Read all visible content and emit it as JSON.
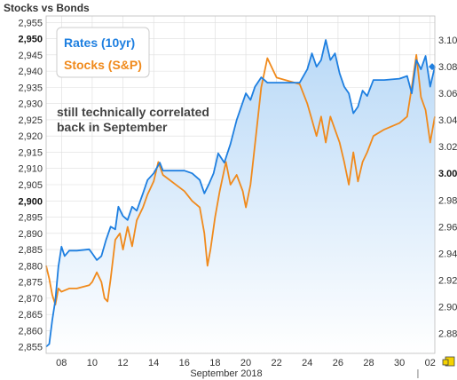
{
  "chart_data": {
    "type": "line",
    "title": "Stocks vs Bonds",
    "xlabel": "September 2018",
    "x_ticks": [
      "08",
      "10",
      "12",
      "14",
      "16",
      "18",
      "20",
      "22",
      "24",
      "26",
      "28",
      "30",
      "02"
    ],
    "x_range": [
      7,
      32.3
    ],
    "y_left": {
      "series": "Stocks (S&P)",
      "range": [
        2853,
        2957
      ],
      "ticks": [
        "2,855",
        "2,860",
        "2,865",
        "2,870",
        "2,875",
        "2,880",
        "2,885",
        "2,890",
        "2,895",
        "2,900",
        "2,905",
        "2,910",
        "2,915",
        "2,920",
        "2,925",
        "2,930",
        "2,935",
        "2,940",
        "2,945",
        "2,950",
        "2,955"
      ],
      "bold_ticks": [
        "2,900",
        "2,950"
      ]
    },
    "y_right": {
      "series": "Rates (10yr)",
      "range": [
        2.865,
        3.118
      ],
      "ticks": [
        "2.88",
        "2.90",
        "2.92",
        "2.94",
        "2.96",
        "2.98",
        "3.00",
        "3.02",
        "3.04",
        "3.06",
        "3.08",
        "3.10"
      ],
      "bold_ticks": [
        "3.00"
      ]
    },
    "series": [
      {
        "name": "Rates (10yr)",
        "color": "#1e7fe0",
        "axis": "right",
        "points": [
          [
            7.0,
            2.87
          ],
          [
            7.2,
            2.872
          ],
          [
            7.4,
            2.89
          ],
          [
            7.6,
            2.905
          ],
          [
            7.8,
            2.93
          ],
          [
            8.0,
            2.945
          ],
          [
            8.2,
            2.938
          ],
          [
            8.5,
            2.942
          ],
          [
            9.0,
            2.942
          ],
          [
            9.8,
            2.943
          ],
          [
            10.0,
            2.94
          ],
          [
            10.3,
            2.935
          ],
          [
            10.6,
            2.938
          ],
          [
            10.9,
            2.95
          ],
          [
            11.2,
            2.96
          ],
          [
            11.5,
            2.958
          ],
          [
            11.7,
            2.975
          ],
          [
            12.0,
            2.968
          ],
          [
            12.3,
            2.965
          ],
          [
            12.6,
            2.975
          ],
          [
            12.9,
            2.972
          ],
          [
            13.3,
            2.985
          ],
          [
            13.6,
            2.995
          ],
          [
            14.0,
            3.0
          ],
          [
            14.4,
            3.008
          ],
          [
            14.6,
            3.002
          ],
          [
            16.0,
            3.002
          ],
          [
            16.5,
            3.0
          ],
          [
            17.0,
            2.995
          ],
          [
            17.3,
            2.985
          ],
          [
            17.6,
            2.992
          ],
          [
            17.9,
            3.0
          ],
          [
            18.2,
            3.015
          ],
          [
            18.6,
            3.008
          ],
          [
            19.0,
            3.022
          ],
          [
            19.4,
            3.04
          ],
          [
            19.7,
            3.05
          ],
          [
            20.0,
            3.06
          ],
          [
            20.3,
            3.055
          ],
          [
            20.6,
            3.065
          ],
          [
            21.0,
            3.072
          ],
          [
            21.4,
            3.068
          ],
          [
            22.0,
            3.068
          ],
          [
            23.5,
            3.068
          ],
          [
            24.0,
            3.078
          ],
          [
            24.3,
            3.09
          ],
          [
            24.6,
            3.08
          ],
          [
            24.9,
            3.085
          ],
          [
            25.2,
            3.1
          ],
          [
            25.5,
            3.085
          ],
          [
            25.8,
            3.09
          ],
          [
            26.1,
            3.075
          ],
          [
            26.4,
            3.065
          ],
          [
            26.7,
            3.06
          ],
          [
            27.0,
            3.045
          ],
          [
            27.3,
            3.05
          ],
          [
            27.6,
            3.062
          ],
          [
            27.9,
            3.058
          ],
          [
            28.3,
            3.07
          ],
          [
            29.0,
            3.07
          ],
          [
            30.0,
            3.071
          ],
          [
            30.5,
            3.073
          ],
          [
            30.8,
            3.06
          ],
          [
            31.1,
            3.085
          ],
          [
            31.4,
            3.078
          ],
          [
            31.7,
            3.088
          ],
          [
            32.0,
            3.065
          ],
          [
            32.3,
            3.08
          ]
        ]
      },
      {
        "name": "Stocks (S&P)",
        "color": "#f08a1c",
        "axis": "left",
        "points": [
          [
            7.0,
            2880
          ],
          [
            7.2,
            2876
          ],
          [
            7.4,
            2871
          ],
          [
            7.6,
            2868
          ],
          [
            7.8,
            2873
          ],
          [
            8.0,
            2872
          ],
          [
            8.5,
            2873
          ],
          [
            9.0,
            2873
          ],
          [
            9.8,
            2874
          ],
          [
            10.0,
            2875
          ],
          [
            10.3,
            2878
          ],
          [
            10.6,
            2875
          ],
          [
            10.8,
            2870
          ],
          [
            11.0,
            2869
          ],
          [
            11.2,
            2876
          ],
          [
            11.5,
            2888
          ],
          [
            11.8,
            2890
          ],
          [
            12.0,
            2885
          ],
          [
            12.3,
            2892
          ],
          [
            12.6,
            2886
          ],
          [
            12.9,
            2894
          ],
          [
            13.3,
            2898
          ],
          [
            13.6,
            2902
          ],
          [
            14.0,
            2906
          ],
          [
            14.3,
            2912
          ],
          [
            14.6,
            2908
          ],
          [
            16.0,
            2903
          ],
          [
            16.5,
            2900
          ],
          [
            17.0,
            2898
          ],
          [
            17.3,
            2890
          ],
          [
            17.5,
            2880
          ],
          [
            17.7,
            2885
          ],
          [
            18.0,
            2895
          ],
          [
            18.3,
            2903
          ],
          [
            18.7,
            2912
          ],
          [
            19.0,
            2905
          ],
          [
            19.4,
            2908
          ],
          [
            19.8,
            2903
          ],
          [
            20.0,
            2898
          ],
          [
            20.3,
            2905
          ],
          [
            20.7,
            2922
          ],
          [
            21.0,
            2935
          ],
          [
            21.4,
            2944
          ],
          [
            22.0,
            2938
          ],
          [
            23.5,
            2936
          ],
          [
            24.0,
            2930
          ],
          [
            24.3,
            2925
          ],
          [
            24.6,
            2920
          ],
          [
            24.9,
            2926
          ],
          [
            25.2,
            2918
          ],
          [
            25.5,
            2926
          ],
          [
            25.8,
            2922
          ],
          [
            26.1,
            2918
          ],
          [
            26.4,
            2912
          ],
          [
            26.7,
            2905
          ],
          [
            27.0,
            2915
          ],
          [
            27.3,
            2906
          ],
          [
            27.6,
            2912
          ],
          [
            27.9,
            2915
          ],
          [
            28.3,
            2920
          ],
          [
            29.0,
            2922
          ],
          [
            30.0,
            2924
          ],
          [
            30.5,
            2926
          ],
          [
            30.8,
            2935
          ],
          [
            31.1,
            2945
          ],
          [
            31.4,
            2932
          ],
          [
            31.7,
            2928
          ],
          [
            32.0,
            2918
          ],
          [
            32.3,
            2926
          ]
        ]
      }
    ],
    "annotation": "still technically correlated back in September",
    "annotation_lines": [
      "still technically correlated",
      "back in September"
    ],
    "legend": {
      "placement": "top-left",
      "entries": [
        {
          "label": "Rates (10yr)",
          "color": "#1e7fe0"
        },
        {
          "label": "Stocks (S&P)",
          "color": "#f08a1c"
        }
      ]
    },
    "last_value_marker": {
      "series": "Rates (10yr)",
      "color": "#1e7fe0"
    },
    "grid": true,
    "colors": {
      "background": "#ffffff",
      "grid": "#dddddd",
      "frame": "#bbbbbb",
      "fill_top": "#b9d9f7",
      "fill_bottom": "#ffffff",
      "legend_border": "#cccccc",
      "annotation": "#444444"
    }
  }
}
